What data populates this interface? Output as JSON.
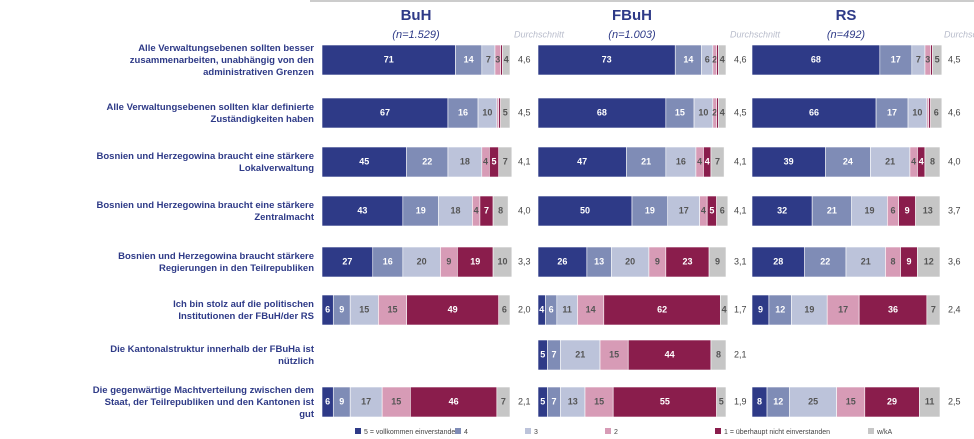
{
  "chart_data": {
    "type": "stacked-bar",
    "categories": [
      "Alle Verwaltungsebenen sollten besser zusammenarbeiten, unabhängig von den administrativen Grenzen",
      "Alle Verwaltungsebenen sollten klar definierte Zuständigkeiten haben",
      "Bosnien und Herzegowina braucht eine stärkere Lokalverwaltung",
      "Bosnien und Herzegowina braucht eine stärkere Zentralmacht",
      "Bosnien und Herzegowina braucht stärkere Regierungen in den Teilrepubliken",
      "Ich bin stolz auf die politischen Institutionen der FBuH/der RS",
      "Die Kantonalstruktur innerhalb der FBuHa ist nützlich",
      "Die gegenwärtige Machtverteilung zwischen dem Staat, der Teilrepubliken und den Kantonen ist gut"
    ],
    "series": [
      {
        "name": "5 = vollkommen einverstanden",
        "color": "#2e3a87"
      },
      {
        "name": "4",
        "color": "#7f8cb6"
      },
      {
        "name": "3",
        "color": "#bcc3da"
      },
      {
        "name": "2",
        "color": "#d79bb6"
      },
      {
        "name": "1 = überhaupt nicht einverstanden",
        "color": "#8a1d4c"
      },
      {
        "name": "w/kA",
        "color": "#c6c6c6"
      }
    ],
    "xlim": [
      0,
      100
    ],
    "panels": [
      {
        "title": "BuH",
        "subtitle": "(n=1.529)",
        "average_title": "Durchschnitt",
        "values": [
          [
            71,
            14,
            7,
            3,
            1,
            4
          ],
          [
            67,
            16,
            10,
            1,
            1,
            5
          ],
          [
            45,
            22,
            18,
            4,
            5,
            7
          ],
          [
            43,
            19,
            18,
            4,
            7,
            8
          ],
          [
            27,
            16,
            20,
            9,
            19,
            10
          ],
          [
            6,
            9,
            15,
            15,
            49,
            6
          ],
          null,
          [
            6,
            9,
            17,
            15,
            46,
            7
          ]
        ],
        "averages": [
          "4,6",
          "4,5",
          "4,1",
          "4,0",
          "3,3",
          "2,0",
          null,
          "2,1"
        ]
      },
      {
        "title": "FBuH",
        "subtitle": "(n=1.003)",
        "average_title": "Durchschnitt",
        "values": [
          [
            73,
            14,
            6,
            2,
            1,
            4
          ],
          [
            68,
            15,
            10,
            2,
            1,
            4
          ],
          [
            47,
            21,
            16,
            4,
            4,
            7
          ],
          [
            50,
            19,
            17,
            4,
            5,
            6
          ],
          [
            26,
            13,
            20,
            9,
            23,
            9
          ],
          [
            4,
            6,
            11,
            14,
            62,
            4
          ],
          [
            5,
            7,
            21,
            15,
            44,
            8
          ],
          [
            5,
            7,
            13,
            15,
            55,
            5
          ]
        ],
        "averages": [
          "4,6",
          "4,5",
          "4,1",
          "4,1",
          "3,1",
          "1,7",
          "2,1",
          "1,9"
        ]
      },
      {
        "title": "RS",
        "subtitle": "(n=492)",
        "average_title": "Durchschnitt",
        "values": [
          [
            68,
            17,
            7,
            3,
            1,
            5
          ],
          [
            66,
            17,
            10,
            1,
            1,
            6
          ],
          [
            39,
            24,
            21,
            4,
            4,
            8
          ],
          [
            32,
            21,
            19,
            6,
            9,
            13
          ],
          [
            28,
            22,
            21,
            8,
            9,
            12
          ],
          [
            9,
            12,
            19,
            17,
            36,
            7
          ],
          null,
          [
            8,
            12,
            25,
            15,
            29,
            11
          ]
        ],
        "averages": [
          "4,5",
          "4,6",
          "4,0",
          "3,7",
          "3,6",
          "2,4",
          null,
          "2,5"
        ]
      }
    ]
  }
}
